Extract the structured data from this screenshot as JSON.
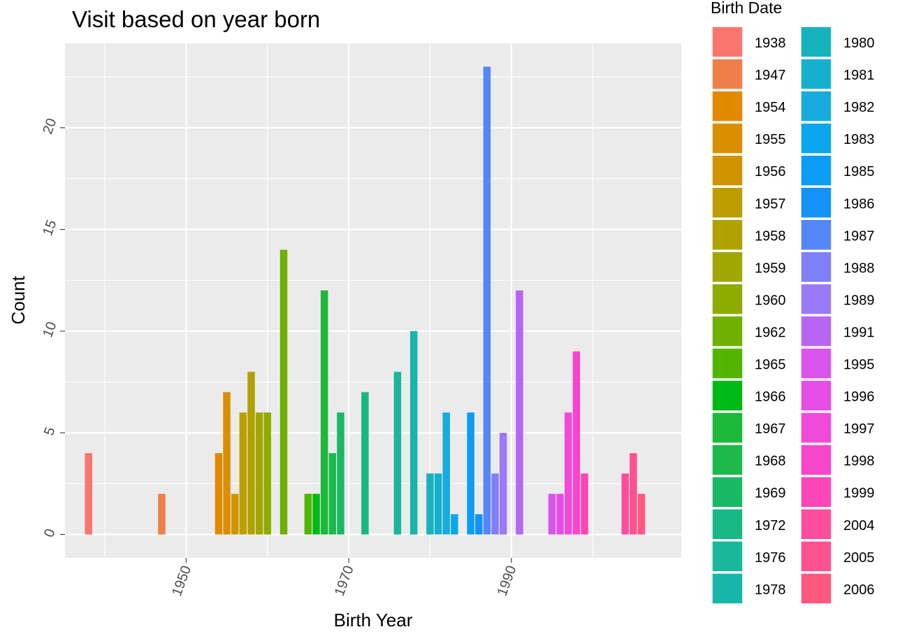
{
  "chart_data": {
    "type": "bar",
    "title": "Visit based on year born",
    "xlabel": "Birth Year",
    "ylabel": "Count",
    "xlim": [
      1935.1,
      2010.9
    ],
    "ylim": [
      -1.15,
      24.15
    ],
    "x_ticks": [
      1950,
      1970,
      1990
    ],
    "x_tick_labels": [
      "1950",
      "1970",
      "1990"
    ],
    "x_minor_ticks": [
      1940,
      1960,
      1980,
      2000
    ],
    "y_ticks": [
      0,
      5,
      10,
      15,
      20
    ],
    "y_tick_labels": [
      "0",
      "5",
      "10",
      "15",
      "20"
    ],
    "y_minor_ticks": [
      2.5,
      7.5,
      12.5,
      17.5,
      22.5
    ],
    "grid": true,
    "legend_title": "Birth Date",
    "legend_position": "right",
    "categories": [
      1938,
      1947,
      1954,
      1955,
      1956,
      1957,
      1958,
      1959,
      1960,
      1962,
      1965,
      1966,
      1967,
      1968,
      1969,
      1972,
      1976,
      1978,
      1980,
      1981,
      1982,
      1983,
      1985,
      1986,
      1987,
      1988,
      1989,
      1991,
      1995,
      1996,
      1997,
      1998,
      1999,
      2004,
      2005,
      2006
    ],
    "values": [
      4,
      2,
      4,
      7,
      2,
      6,
      8,
      6,
      6,
      14,
      2,
      2,
      12,
      4,
      6,
      7,
      8,
      10,
      3,
      3,
      6,
      1,
      6,
      1,
      23,
      3,
      5,
      12,
      2,
      2,
      6,
      9,
      3,
      3,
      4,
      2
    ],
    "colors": [
      "#F8766D",
      "#EF7F49",
      "#E38900",
      "#DA8F00",
      "#D09400",
      "#BD9D00",
      "#AFA200",
      "#9FA700",
      "#8EAB00",
      "#6FB000",
      "#53B400",
      "#00B816",
      "#1BB839",
      "#1DB84A",
      "#19B865",
      "#17B886",
      "#19B79C",
      "#17B5AA",
      "#16B3BC",
      "#16B0CF",
      "#18ABDF",
      "#0AA6EE",
      "#0C9CF6",
      "#1492F8",
      "#5486F8",
      "#7F80F7",
      "#9A7AF9",
      "#B865F3",
      "#D954EA",
      "#E64CE6",
      "#F04ADB",
      "#F746C9",
      "#FC45B6",
      "#FE4C9E",
      "#FE5290",
      "#FF5880"
    ]
  }
}
